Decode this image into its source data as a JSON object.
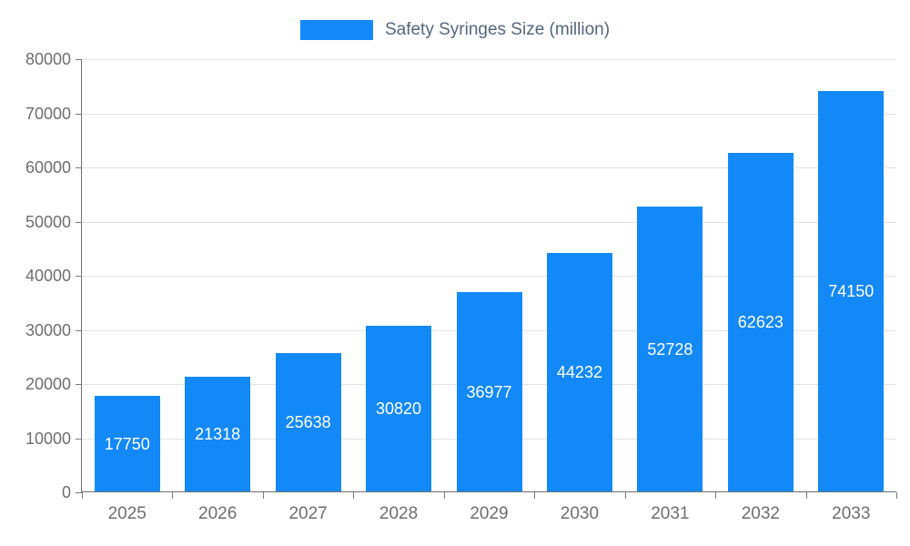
{
  "colors": {
    "bar": "#1389F7",
    "bar_label": "#ffffff",
    "legend_text": "#54667D",
    "grid": "#e2e2e2",
    "axis": "#6f6f6f",
    "tick_label": "#6e6e6e"
  },
  "legend": {
    "label": "Safety Syringes Size (million)"
  },
  "chart_data": {
    "type": "bar",
    "title": "",
    "xlabel": "",
    "ylabel": "",
    "categories": [
      "2025",
      "2026",
      "2027",
      "2028",
      "2029",
      "2030",
      "2031",
      "2032",
      "2033"
    ],
    "series": [
      {
        "name": "Safety Syringes Size (million)",
        "values": [
          17750,
          21318,
          25638,
          30820,
          36977,
          44232,
          52728,
          62623,
          74150
        ]
      }
    ],
    "ylim": [
      0,
      80000
    ],
    "yticks": [
      0,
      10000,
      20000,
      30000,
      40000,
      50000,
      60000,
      70000,
      80000
    ],
    "grid": true,
    "legend_position": "top",
    "bar_labels": "inside-center"
  }
}
